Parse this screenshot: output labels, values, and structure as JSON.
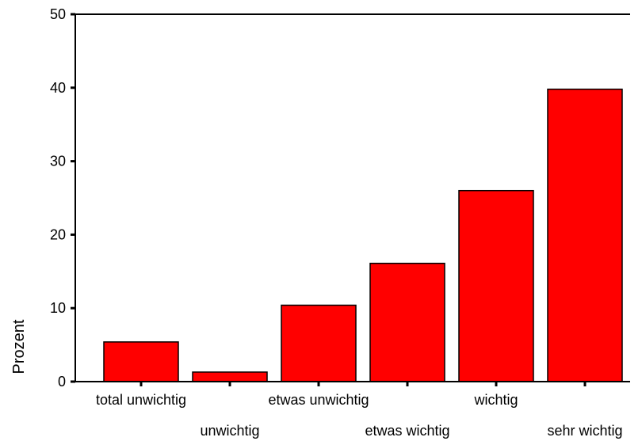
{
  "chart_data": {
    "type": "bar",
    "title": "",
    "xlabel": "",
    "ylabel": "Prozent",
    "categories": [
      "total unwichtig",
      "unwichtig",
      "etwas unwichtig",
      "etwas wichtig",
      "wichtig",
      "sehr wichtig"
    ],
    "values": [
      5.4,
      1.3,
      10.4,
      16.1,
      26.0,
      39.8
    ],
    "ylim": [
      0,
      50
    ],
    "yticks": [
      "0",
      "10",
      "20",
      "30",
      "40",
      "50"
    ],
    "grid": false,
    "legend": "none",
    "bar_color": "#ff0000",
    "bar_edge_color": "#000000"
  }
}
